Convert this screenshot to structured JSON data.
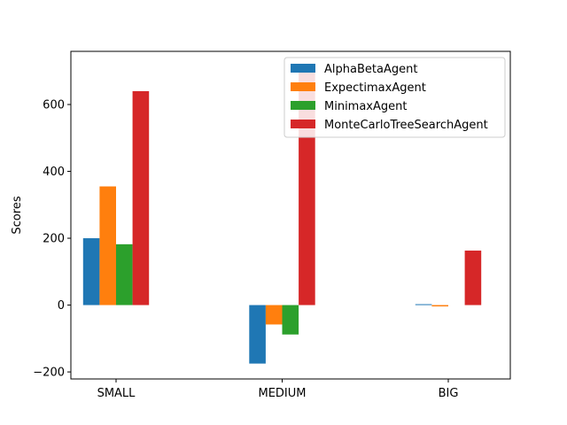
{
  "chart_data": {
    "type": "bar",
    "title": "",
    "xlabel": "",
    "ylabel": "Scores",
    "categories": [
      "SMALL",
      "MEDIUM",
      "BIG"
    ],
    "series": [
      {
        "name": "AlphaBetaAgent",
        "color": "#1f77b4",
        "values": [
          200,
          -175,
          2
        ]
      },
      {
        "name": "ExpectimaxAgent",
        "color": "#ff7f0e",
        "values": [
          355,
          -58,
          -4
        ]
      },
      {
        "name": "MinimaxAgent",
        "color": "#2ca02c",
        "values": [
          182,
          -88,
          0
        ]
      },
      {
        "name": "MonteCarloTreeSearchAgent",
        "color": "#d62728",
        "values": [
          640,
          715,
          163
        ]
      }
    ],
    "yticks": [
      -200,
      0,
      200,
      400,
      600
    ],
    "ylim": [
      -221,
      759
    ],
    "grid": false,
    "legend_position": "top-right"
  }
}
